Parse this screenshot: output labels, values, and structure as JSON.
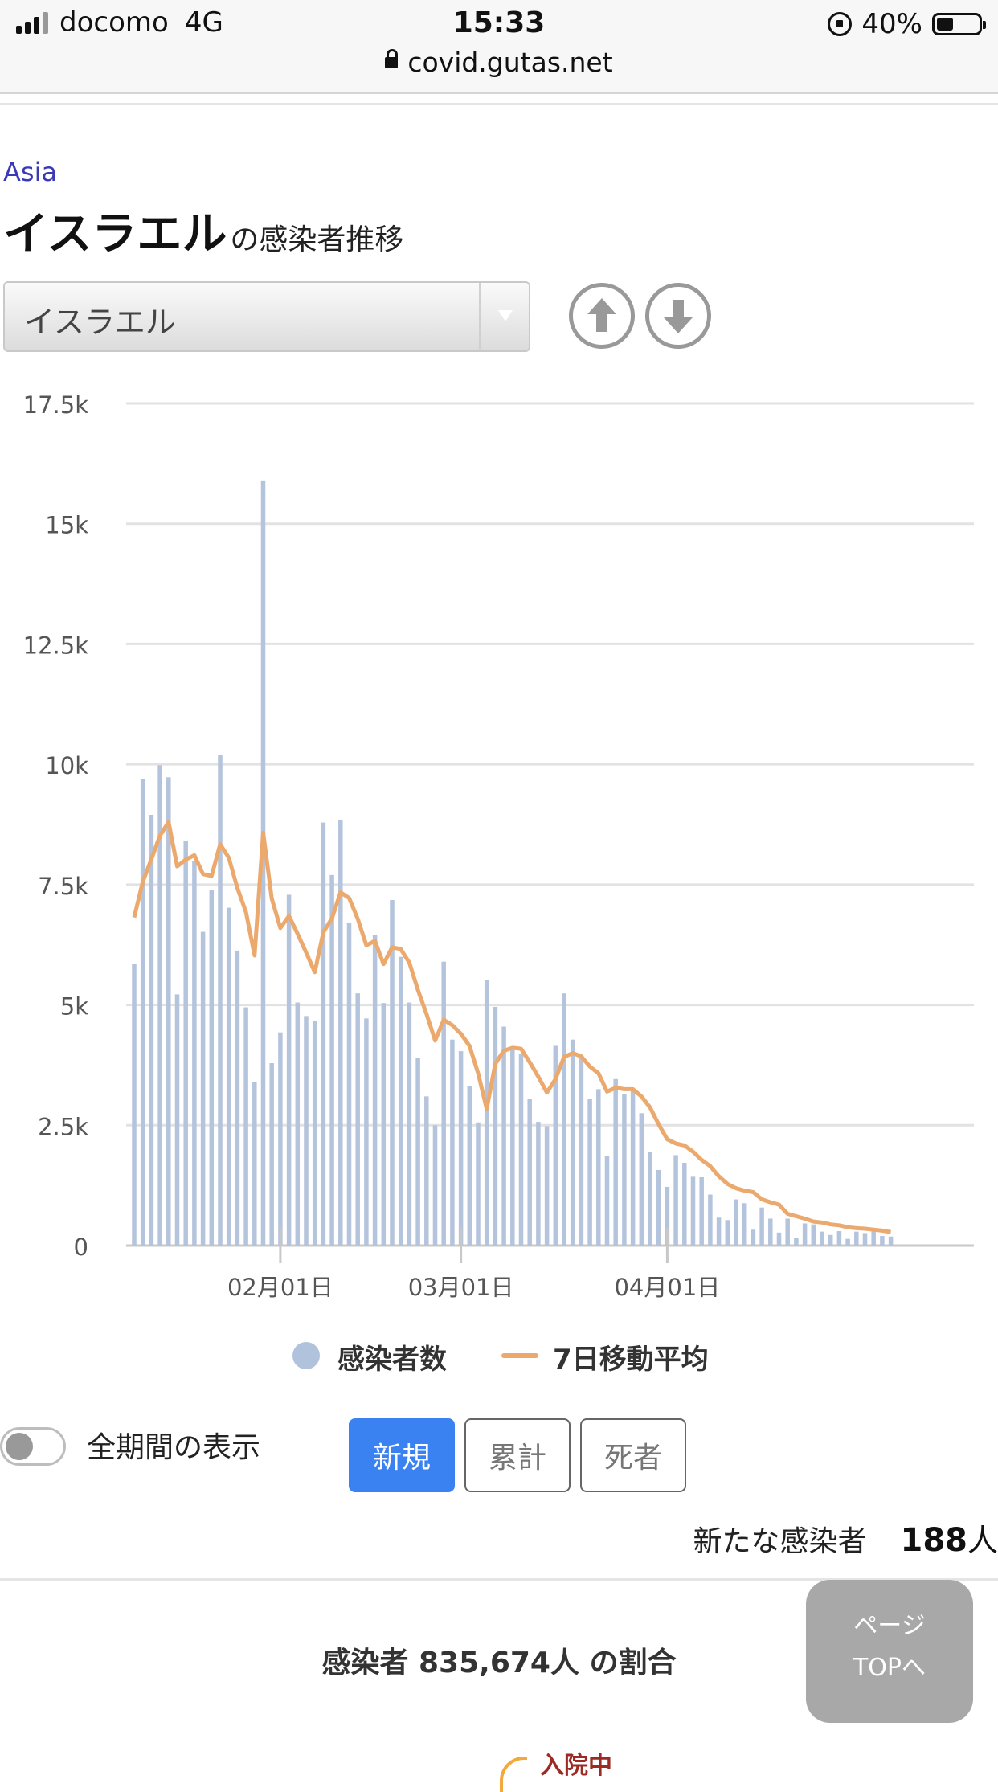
{
  "status_bar": {
    "carrier": "docomo",
    "network": "4G",
    "time": "15:33",
    "url": "covid.gutas.net",
    "battery": "40%"
  },
  "header": {
    "region": "Asia",
    "title": "イスラエル",
    "title_suffix": "の感染者推移"
  },
  "selector": {
    "value": "イスラエル"
  },
  "icons": {
    "up": "arrow-up-circle-icon",
    "down": "arrow-down-circle-icon"
  },
  "chart_data": {
    "type": "bar",
    "y_ticks": [
      "0",
      "2.5k",
      "5k",
      "7.5k",
      "10k",
      "12.5k",
      "15k",
      "17.5k"
    ],
    "ylim": [
      0,
      17500
    ],
    "x_tick_labels": [
      "02月01日",
      "03月01日",
      "04月01日"
    ],
    "legend": [
      "感染者数",
      "7日移動平均"
    ],
    "colors": {
      "bars": "#b4c4dc",
      "line": "#eca96e"
    },
    "series": [
      {
        "name": "感染者数",
        "type": "bar",
        "values": [
          5850,
          9700,
          8950,
          9980,
          9730,
          5220,
          8400,
          7990,
          6520,
          7380,
          10200,
          7020,
          6130,
          4950,
          3390,
          15900,
          3790,
          4430,
          7290,
          5050,
          4770,
          4660,
          8790,
          7700,
          8840,
          6700,
          5240,
          4720,
          6450,
          5040,
          7180,
          6000,
          5050,
          3900,
          3100,
          2500,
          5900,
          4280,
          4040,
          3320,
          2560,
          5520,
          4960,
          4550,
          4070,
          3980,
          3050,
          2570,
          2480,
          4150,
          5240,
          4280,
          3960,
          3040,
          3250,
          1870,
          3460,
          3150,
          3250,
          2750,
          1940,
          1570,
          1220,
          1880,
          1720,
          1430,
          1420,
          1060,
          580,
          530,
          960,
          880,
          330,
          790,
          560,
          270,
          560,
          160,
          460,
          440,
          290,
          220,
          300,
          140,
          290,
          260,
          310,
          200,
          188
        ]
      },
      {
        "name": "7日移動平均",
        "type": "line",
        "values": [
          6820,
          7560,
          8030,
          8520,
          8800,
          7880,
          8020,
          8110,
          7720,
          7680,
          8340,
          8060,
          7430,
          6930,
          6030,
          8580,
          7210,
          6600,
          6850,
          6480,
          6090,
          5680,
          6510,
          6800,
          7340,
          7220,
          6790,
          6240,
          6330,
          5850,
          6200,
          6160,
          5880,
          5310,
          4810,
          4260,
          4690,
          4580,
          4400,
          4150,
          3580,
          2840,
          3780,
          4050,
          4110,
          4090,
          3810,
          3510,
          3180,
          3460,
          3920,
          4000,
          3930,
          3720,
          3580,
          3200,
          3280,
          3250,
          3250,
          3100,
          2870,
          2520,
          2210,
          2120,
          2080,
          1950,
          1780,
          1650,
          1440,
          1280,
          1190,
          1140,
          1110,
          960,
          900,
          850,
          660,
          610,
          560,
          500,
          480,
          440,
          420,
          380,
          360,
          350,
          330,
          310,
          280
        ]
      }
    ]
  },
  "legend": {
    "cases": "感染者数",
    "moving_avg": "7日移動平均"
  },
  "controls": {
    "show_all_label": "全期間の表示",
    "tab_new": "新規",
    "tab_cumulative": "累計",
    "tab_deaths": "死者"
  },
  "new_cases": {
    "label": "新たな感染者",
    "value": "188",
    "unit": "人"
  },
  "ratio": {
    "label_prefix": "感染者",
    "value": "835,674人",
    "label_suffix": "の割合"
  },
  "page_top": {
    "line1": "ページ",
    "line2": "TOPへ"
  },
  "hospitalized": "入院中"
}
